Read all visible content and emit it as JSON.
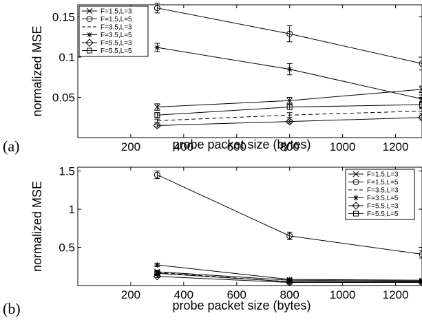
{
  "chart_data": [
    {
      "type": "line",
      "panel_label": "(a)",
      "xlabel": "probe packet size (bytes)",
      "ylabel": "normalized MSE",
      "xlim": [
        0,
        1300
      ],
      "ylim": [
        0,
        0.165
      ],
      "xticks": [
        200,
        400,
        600,
        800,
        1000,
        1200
      ],
      "yticks": [
        0.05,
        0.1,
        0.15
      ],
      "ytick_labels": [
        "0.05",
        "0.1",
        "0.15"
      ],
      "grid": false,
      "legend_position": "top-left",
      "x": [
        300,
        800,
        1300
      ],
      "series": [
        {
          "name": "F=1.5,L=3",
          "marker": "x",
          "dash": "solid",
          "values": [
            0.038,
            0.046,
            0.06
          ],
          "errors": [
            0.004,
            0.004,
            0.004
          ]
        },
        {
          "name": "F=1.5,L=5",
          "marker": "circle",
          "dash": "solid",
          "values": [
            0.161,
            0.129,
            0.092
          ],
          "errors": [
            0.006,
            0.01,
            0.008
          ]
        },
        {
          "name": "F=3.5,L=3",
          "marker": "none",
          "dash": "dashed",
          "values": [
            0.021,
            0.028,
            0.033
          ],
          "errors": [
            0.002,
            0.003,
            0.003
          ]
        },
        {
          "name": "F=3.5,L=5",
          "marker": "star",
          "dash": "solid",
          "values": [
            0.112,
            0.085,
            0.048
          ],
          "errors": [
            0.005,
            0.007,
            0.005
          ]
        },
        {
          "name": "F=5.5,L=3",
          "marker": "diamond",
          "dash": "solid",
          "values": [
            0.015,
            0.02,
            0.025
          ],
          "errors": [
            0.002,
            0.002,
            0.003
          ]
        },
        {
          "name": "F=5.5,L=5",
          "marker": "square",
          "dash": "solid",
          "values": [
            0.028,
            0.038,
            0.041
          ],
          "errors": [
            0.003,
            0.003,
            0.004
          ]
        }
      ]
    },
    {
      "type": "line",
      "panel_label": "(b)",
      "xlabel": "probe packet size (bytes)",
      "ylabel": "normalized MSE",
      "xlim": [
        0,
        1300
      ],
      "ylim": [
        0,
        1.55
      ],
      "xticks": [
        200,
        400,
        600,
        800,
        1000,
        1200
      ],
      "yticks": [
        0.5,
        1,
        1.5
      ],
      "ytick_labels": [
        "0.5",
        "1",
        "1.5"
      ],
      "grid": false,
      "legend_position": "top-right",
      "x": [
        300,
        800,
        1300
      ],
      "series": [
        {
          "name": "F=1.5,L=3",
          "marker": "x",
          "dash": "solid",
          "values": [
            0.18,
            0.07,
            0.06
          ],
          "errors": [
            0.02,
            0.01,
            0.01
          ]
        },
        {
          "name": "F=1.5,L=5",
          "marker": "circle",
          "dash": "solid",
          "values": [
            1.45,
            0.65,
            0.41
          ],
          "errors": [
            0.05,
            0.05,
            0.05
          ]
        },
        {
          "name": "F=3.5,L=3",
          "marker": "none",
          "dash": "dashed",
          "values": [
            0.17,
            0.05,
            0.05
          ],
          "errors": [
            0.02,
            0.01,
            0.01
          ]
        },
        {
          "name": "F=3.5,L=5",
          "marker": "star",
          "dash": "solid",
          "values": [
            0.27,
            0.08,
            0.07
          ],
          "errors": [
            0.02,
            0.01,
            0.01
          ]
        },
        {
          "name": "F=5.5,L=3",
          "marker": "diamond",
          "dash": "solid",
          "values": [
            0.12,
            0.04,
            0.04
          ],
          "errors": [
            0.015,
            0.01,
            0.01
          ]
        },
        {
          "name": "F=5.5,L=5",
          "marker": "square",
          "dash": "solid",
          "values": [
            0.16,
            0.05,
            0.05
          ],
          "errors": [
            0.02,
            0.01,
            0.01
          ]
        }
      ]
    }
  ],
  "series_colors": {
    "line": "#000000"
  }
}
